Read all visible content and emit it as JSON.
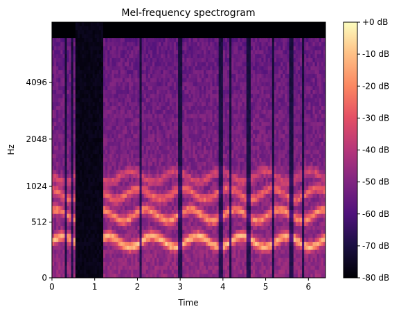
{
  "chart_data": {
    "type": "heatmap",
    "title": "Mel-frequency spectrogram",
    "xlabel": "Time",
    "ylabel": "Hz",
    "xlim": [
      0,
      6.4
    ],
    "x_ticks": [
      0,
      1,
      2,
      3,
      4,
      5,
      6
    ],
    "y_scale": "mel",
    "y_ticks": [
      0,
      512,
      1024,
      2048,
      4096
    ],
    "ylim": [
      0,
      8000
    ],
    "colormap": "magma",
    "colorbar": {
      "range": [
        -80,
        0
      ],
      "ticks": [
        0,
        -10,
        -20,
        -30,
        -40,
        -50,
        -60,
        -70,
        -80
      ],
      "tick_labels": [
        "+0 dB",
        "-10 dB",
        "-20 dB",
        "-30 dB",
        "-40 dB",
        "-50 dB",
        "-60 dB",
        "-70 dB",
        "-80 dB"
      ]
    },
    "silence_gaps": [
      [
        0.55,
        1.22
      ]
    ],
    "harmonic_bands_hz": [
      300,
      600,
      900,
      1200
    ],
    "colors": {
      "low": "#000004",
      "mid": "#b73779",
      "high": "#fcfdbf"
    }
  }
}
